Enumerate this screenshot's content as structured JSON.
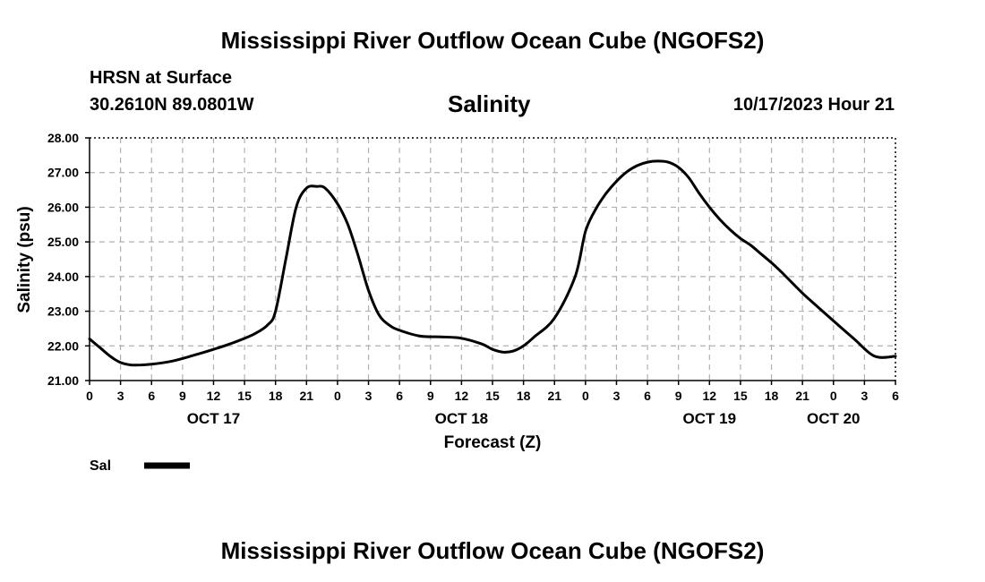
{
  "page": {
    "title_top": "Mississippi River Outflow Ocean Cube (NGOFS2)",
    "title_bottom": "Mississippi River Outflow Ocean Cube (NGOFS2)",
    "station": "HRSN at Surface",
    "coords": "30.2610N  89.0801W",
    "datetime": "10/17/2023 Hour 21"
  },
  "chart_data": {
    "type": "line",
    "title": "Salinity",
    "xlabel": "Forecast (Z)",
    "ylabel": "Salinity (psu)",
    "ylim": [
      21.0,
      28.0
    ],
    "y_ticks": [
      "21.00",
      "22.00",
      "23.00",
      "24.00",
      "25.00",
      "26.00",
      "27.00",
      "28.00"
    ],
    "x_range_hours": [
      0,
      78
    ],
    "x_tick_labels": [
      "0",
      "3",
      "6",
      "9",
      "12",
      "15",
      "18",
      "21",
      "0",
      "3",
      "6",
      "9",
      "12",
      "15",
      "18",
      "21",
      "0",
      "3",
      "6",
      "9",
      "12",
      "15",
      "18",
      "21",
      "0",
      "3",
      "6"
    ],
    "date_labels": [
      {
        "label": "OCT 17",
        "hour": 12
      },
      {
        "label": "OCT 18",
        "hour": 36
      },
      {
        "label": "OCT 19",
        "hour": 60
      },
      {
        "label": "OCT 20",
        "hour": 72
      }
    ],
    "grid": true,
    "legend": "bottom-left",
    "series": [
      {
        "name": "Sal",
        "x": [
          0,
          1,
          2,
          3,
          4,
          5,
          6,
          8,
          10,
          12,
          14,
          16,
          17.3,
          18,
          19,
          20,
          21,
          22,
          22.8,
          24,
          25,
          26,
          27,
          28,
          29,
          30,
          32,
          34,
          36,
          38,
          39,
          40,
          41,
          42,
          43,
          45,
          47,
          48,
          49,
          50,
          51,
          52,
          53,
          54,
          55,
          56,
          57,
          58,
          59,
          60,
          61,
          62,
          63,
          64,
          65,
          66,
          67,
          68,
          69,
          70,
          72,
          74,
          76,
          78
        ],
        "values": [
          22.2,
          21.95,
          21.7,
          21.52,
          21.45,
          21.45,
          21.47,
          21.56,
          21.72,
          21.9,
          22.1,
          22.35,
          22.62,
          23.0,
          24.5,
          26.0,
          26.55,
          26.6,
          26.55,
          26.1,
          25.5,
          24.6,
          23.6,
          22.9,
          22.6,
          22.45,
          22.28,
          22.26,
          22.22,
          22.05,
          21.9,
          21.82,
          21.85,
          22.0,
          22.25,
          22.8,
          24.0,
          25.3,
          25.95,
          26.4,
          26.75,
          27.02,
          27.2,
          27.3,
          27.33,
          27.3,
          27.15,
          26.85,
          26.4,
          26.0,
          25.65,
          25.35,
          25.1,
          24.9,
          24.65,
          24.4,
          24.12,
          23.82,
          23.52,
          23.25,
          22.72,
          22.2,
          21.7,
          21.7
        ]
      }
    ]
  }
}
